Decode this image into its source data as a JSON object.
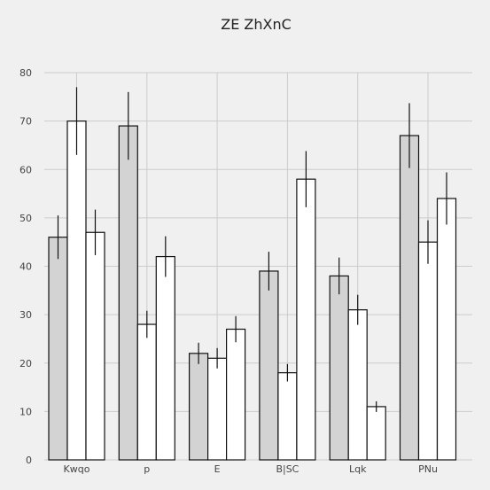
{
  "chart_data": {
    "type": "bar",
    "title": "ZE ZhXnC",
    "xlabel": "",
    "ylabel": "",
    "categories": [
      "Kwqo",
      "p",
      "E",
      "B|SC",
      "Lqk",
      "PNu"
    ],
    "ylim": [
      0,
      80
    ],
    "yticks": [
      "0",
      "10",
      "20",
      "30",
      "40",
      "50",
      "60",
      "70",
      "80"
    ],
    "grid": true,
    "legend": "none",
    "series": [
      {
        "values": [
          46,
          69,
          22,
          39,
          38,
          67
        ],
        "errors": [
          4.5,
          7,
          2.2,
          4,
          3.8,
          6.7
        ],
        "color": "#d3d3d3"
      },
      {
        "values": [
          70,
          28,
          21,
          18,
          31,
          45
        ],
        "errors": [
          7,
          2.8,
          2.1,
          1.8,
          3.1,
          4.5
        ],
        "color": "#ffffff"
      },
      {
        "values": [
          47,
          42,
          27,
          58,
          11,
          54
        ],
        "errors": [
          4.7,
          4.2,
          2.7,
          5.8,
          1.1,
          5.4
        ],
        "color": "#ffffff"
      }
    ]
  }
}
